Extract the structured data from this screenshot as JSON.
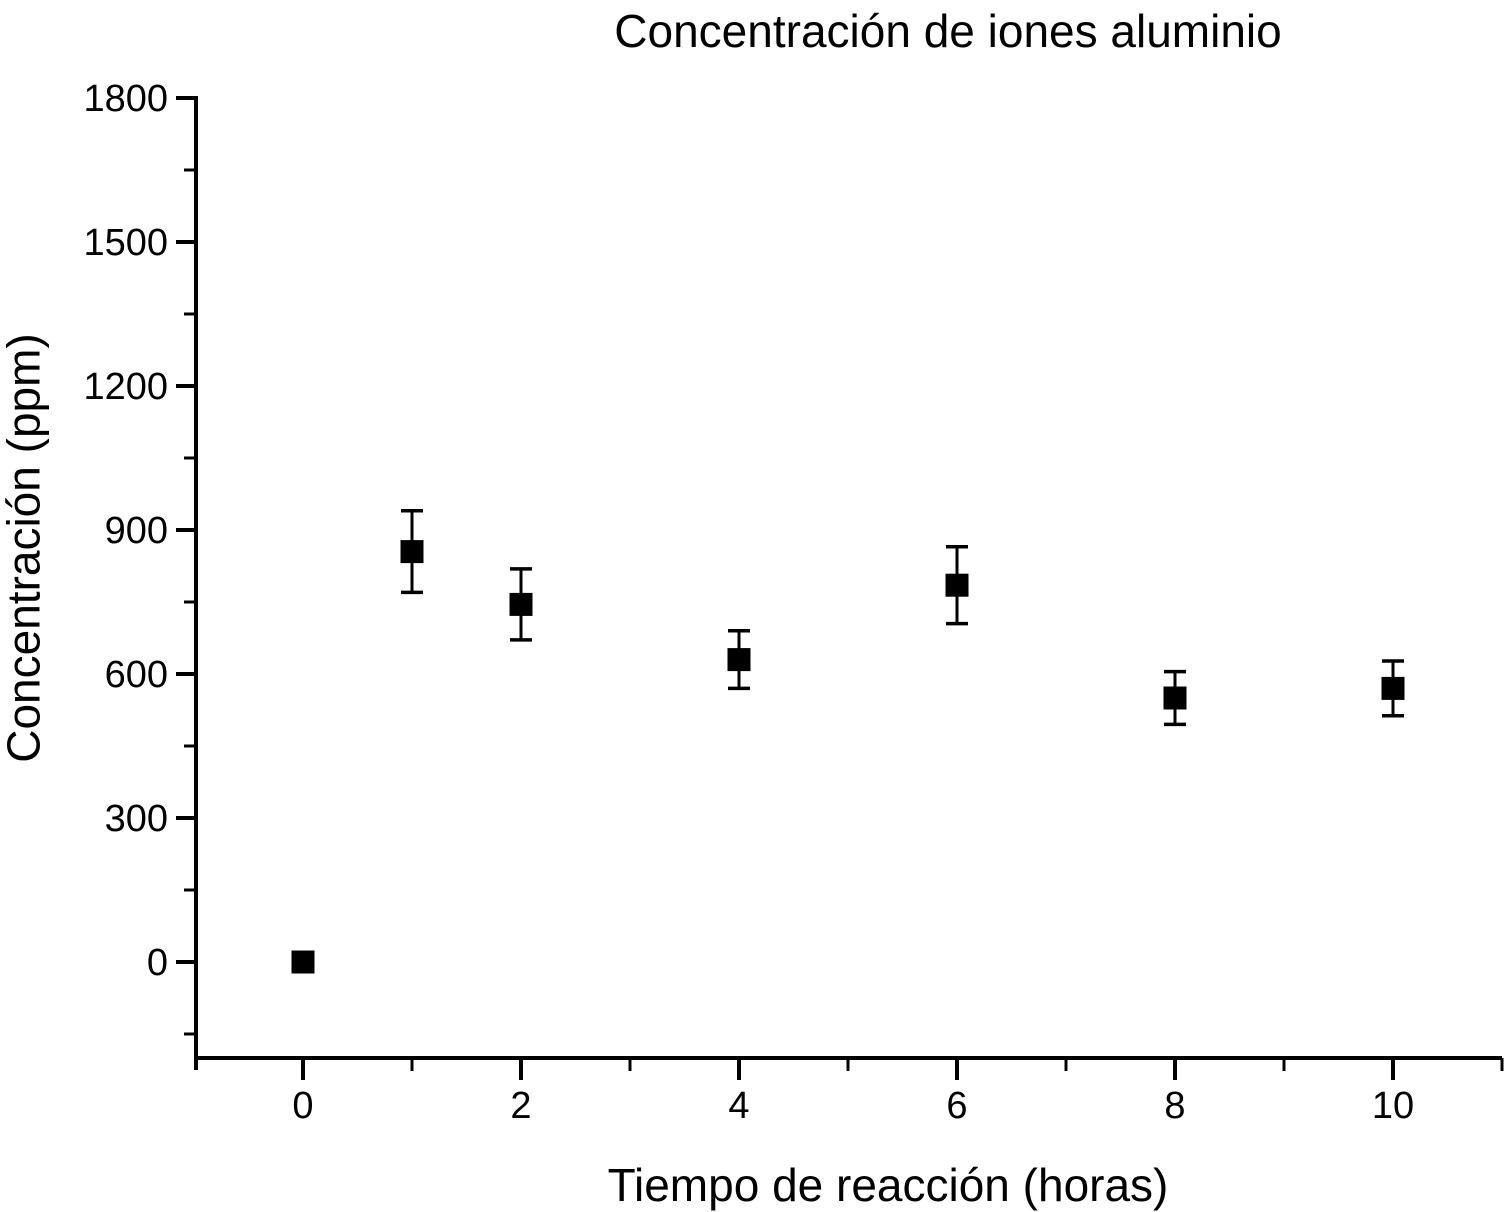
{
  "figure": {
    "background_color": "#ffffff",
    "ink_color": "#000000"
  },
  "chart_data": {
    "type": "scatter",
    "title": "Concentración de iones aluminio",
    "xlabel": "Tiempo de reacción (horas)",
    "ylabel": "Concentración (ppm)",
    "x": [
      0,
      1,
      2,
      4,
      6,
      8,
      10
    ],
    "y": [
      0,
      855,
      745,
      630,
      785,
      550,
      570
    ],
    "y_err": [
      0,
      85,
      74,
      60,
      80,
      55,
      57
    ],
    "marker": "filled-square",
    "marker_color": "#000000",
    "xlim": [
      -1,
      11
    ],
    "ylim": [
      -225,
      1800
    ],
    "x_axis_position": -200,
    "x_ticks_major": [
      0,
      2,
      4,
      6,
      8,
      10
    ],
    "x_ticks_minor": [
      1,
      3,
      5,
      7,
      9,
      11
    ],
    "y_ticks_major": [
      0,
      300,
      600,
      900,
      1200,
      1500,
      1800
    ],
    "y_ticks_minor": [
      -150,
      150,
      450,
      750,
      1050,
      1350,
      1650
    ],
    "grid": false,
    "legend": null
  }
}
